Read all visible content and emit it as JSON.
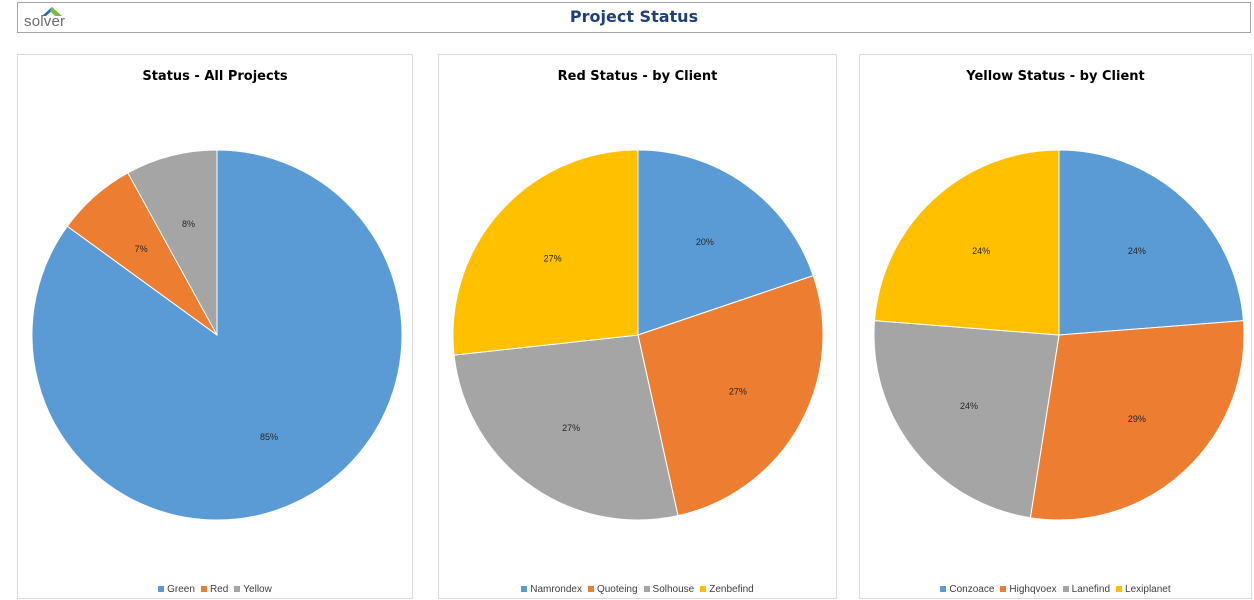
{
  "header": {
    "logo_text": "solver",
    "title": "Project Status"
  },
  "chart_data": [
    {
      "type": "pie",
      "title": "Status - All Projects",
      "categories": [
        "Green",
        "Red",
        "Yellow"
      ],
      "values": [
        85,
        7,
        8
      ],
      "labels": [
        "85%",
        "7%",
        "8%"
      ],
      "colors": [
        "#5b9bd5",
        "#ed7d31",
        "#a5a5a5"
      ],
      "legend": "bottom"
    },
    {
      "type": "pie",
      "title": "Red Status - by Client",
      "categories": [
        "Namrondex",
        "Quoteing",
        "Solhouse",
        "Zenbefind"
      ],
      "values": [
        20,
        27,
        27,
        27
      ],
      "labels": [
        "20%",
        "27%",
        "27%",
        "27%"
      ],
      "colors": [
        "#5b9bd5",
        "#ed7d31",
        "#a5a5a5",
        "#ffc000"
      ],
      "legend": "bottom"
    },
    {
      "type": "pie",
      "title": "Yellow Status - by Client",
      "categories": [
        "Conzoace",
        "Highqvoex",
        "Lanefind",
        "Lexiplanet"
      ],
      "values": [
        24,
        29,
        24,
        24
      ],
      "labels": [
        "24%",
        "29%",
        "24%",
        "24%"
      ],
      "colors": [
        "#5b9bd5",
        "#ed7d31",
        "#a5a5a5",
        "#ffc000"
      ],
      "legend": "bottom"
    }
  ]
}
